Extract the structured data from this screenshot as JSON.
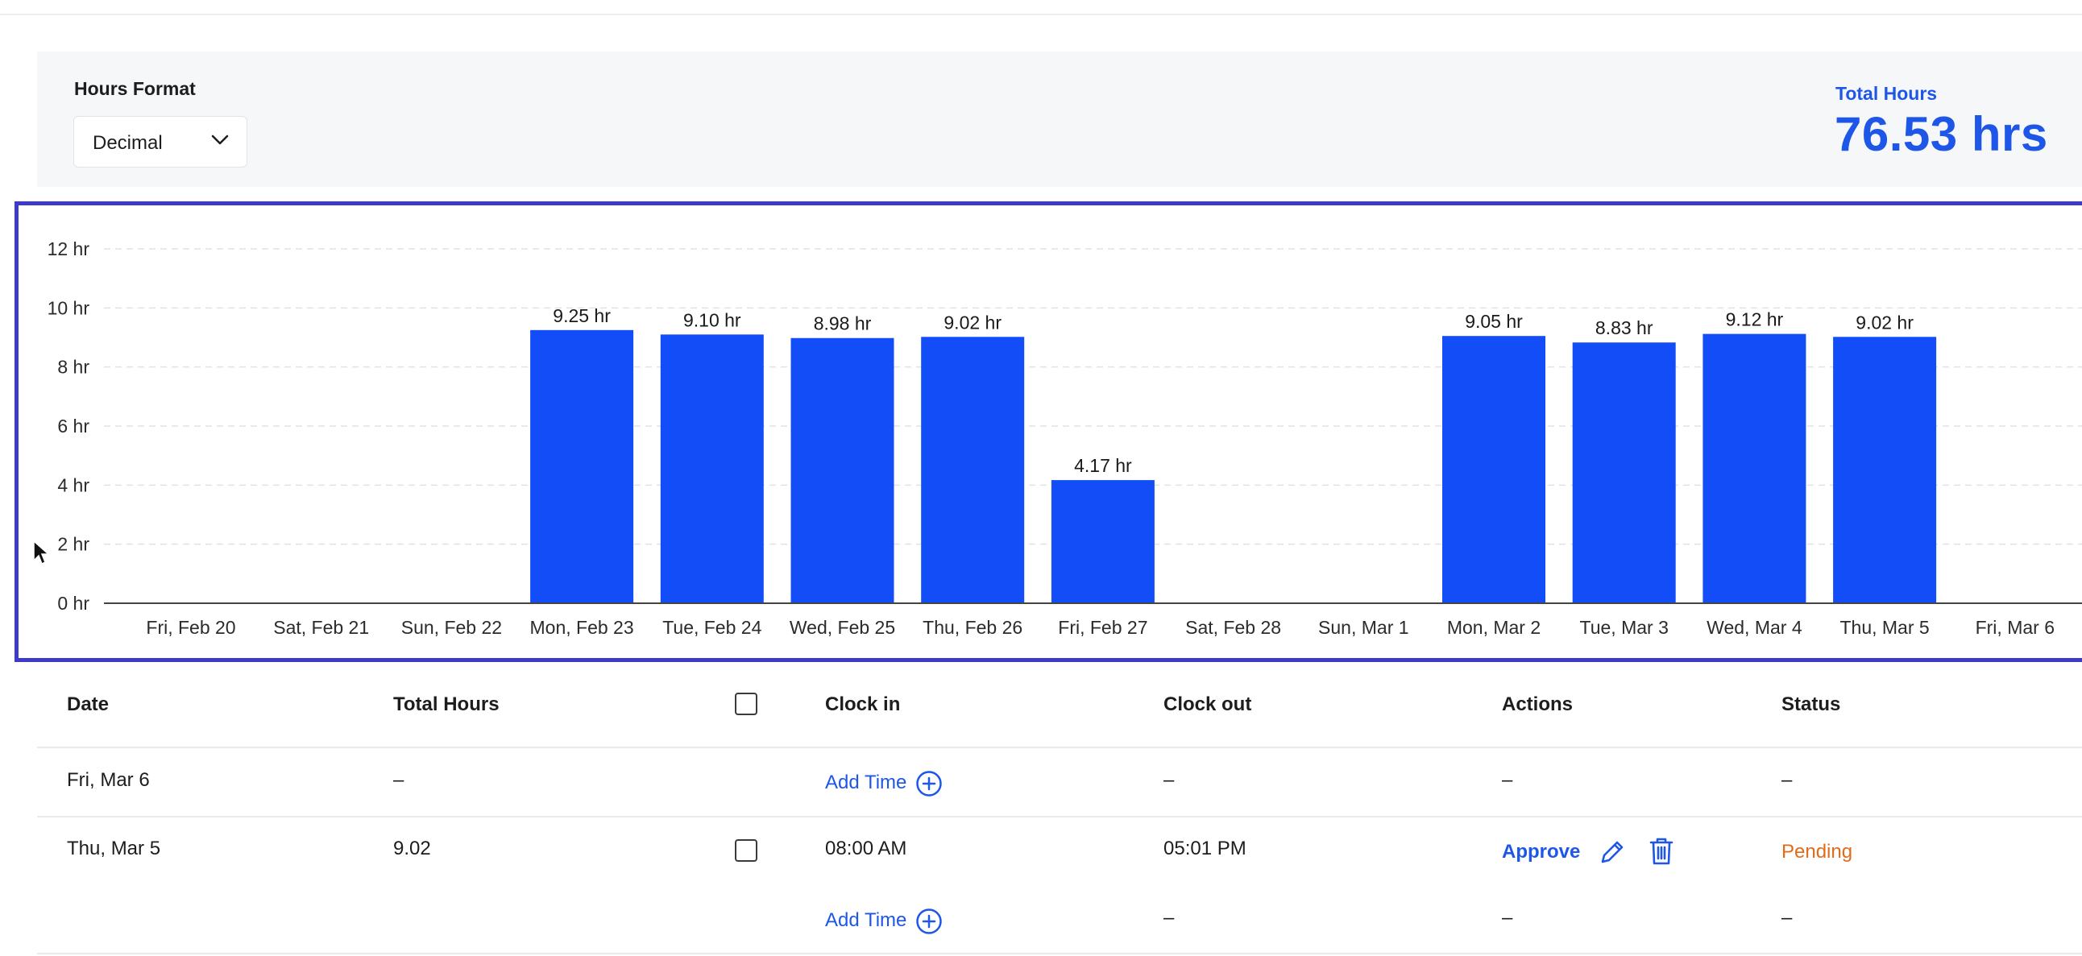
{
  "header": {
    "hours_format_label": "Hours Format",
    "hours_format_value": "Decimal",
    "total_hours_label": "Total Hours",
    "total_hours_value": "76.53 hrs"
  },
  "colors": {
    "accent": "#1e56e8",
    "bar": "#134df8",
    "pending": "#e26b1a",
    "highlight_border": "#3c3cc8"
  },
  "chart_data": {
    "type": "bar",
    "categories": [
      "Fri, Feb 20",
      "Sat, Feb 21",
      "Sun, Feb 22",
      "Mon, Feb 23",
      "Tue, Feb 24",
      "Wed, Feb 25",
      "Thu, Feb 26",
      "Fri, Feb 27",
      "Sat, Feb 28",
      "Sun, Mar 1",
      "Mon, Mar 2",
      "Tue, Mar 3",
      "Wed, Mar 4",
      "Thu, Mar 5",
      "Fri, Mar 6"
    ],
    "values": [
      0,
      0,
      0,
      9.25,
      9.1,
      8.98,
      9.02,
      4.17,
      0,
      0,
      9.05,
      8.83,
      9.12,
      9.02,
      0
    ],
    "data_labels": [
      "",
      "",
      "",
      "9.25 hr",
      "9.10 hr",
      "8.98 hr",
      "9.02 hr",
      "4.17 hr",
      "",
      "",
      "9.05 hr",
      "8.83 hr",
      "9.12 hr",
      "9.02 hr",
      ""
    ],
    "y_ticks": [
      0,
      2,
      4,
      6,
      8,
      10,
      12
    ],
    "y_tick_labels": [
      "0 hr",
      "2 hr",
      "4 hr",
      "6 hr",
      "8 hr",
      "10 hr",
      "12 hr"
    ],
    "ylim": [
      0,
      12
    ],
    "grid": true
  },
  "table": {
    "headers": {
      "date": "Date",
      "total_hours": "Total Hours",
      "clock_in": "Clock in",
      "clock_out": "Clock out",
      "actions": "Actions",
      "status": "Status"
    },
    "rows": [
      {
        "date": "Fri, Mar 6",
        "total_hours": "–",
        "clock_in_action": "Add Time",
        "clock_out": "–",
        "actions": "–",
        "status": "–"
      },
      {
        "date": "Thu, Mar 5",
        "total_hours": "9.02",
        "clock_in": "08:00 AM",
        "clock_out": "05:01 PM",
        "approve_label": "Approve",
        "status": "Pending",
        "sub": {
          "clock_in_action": "Add Time",
          "clock_out": "–",
          "actions": "–",
          "status": "–"
        }
      }
    ]
  },
  "icons": [
    "chevron-down-icon",
    "plus-circle-icon",
    "pencil-icon",
    "trash-icon",
    "mouse-cursor-icon",
    "checkbox-icon"
  ]
}
